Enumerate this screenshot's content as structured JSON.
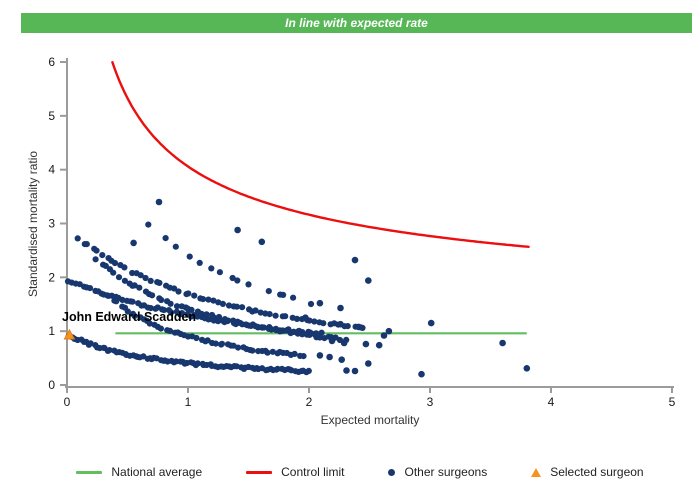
{
  "banner": {
    "text": "In line with expected rate",
    "bg": "#57B757",
    "text_color": "#FFFFFF"
  },
  "colors": {
    "navy_points": "#17376E",
    "control_limit_red": "#EC0F0F",
    "national_average_green": "#62BE5E",
    "selected_orange": "#F6921E",
    "selected_orange_edge": "#E07C10",
    "axis_gray": "#9B9B9B",
    "tick_label": "#1A1A1A",
    "axis_title": "#333333"
  },
  "chart_data": {
    "type": "scatter",
    "title": "In line with expected rate",
    "xlabel": "Expected mortality",
    "ylabel": "Standardised mortality ratio",
    "xlim": [
      0,
      5
    ],
    "ylim": [
      0,
      6
    ],
    "xticks": [
      0,
      1,
      2,
      3,
      4,
      5
    ],
    "yticks": [
      0,
      1,
      2,
      3,
      4,
      5,
      6
    ],
    "grid": false,
    "legend_position": "bottom",
    "national_average": {
      "y": 0.96,
      "x_start": 0.4,
      "x_end": 3.8
    },
    "control_limit": {
      "formula": "y = 1 + 3.06/sqrt(x)",
      "k": 3.06,
      "offset": 1,
      "x_start": 0.375,
      "x_end": 3.83
    },
    "selected_surgeon": {
      "label": "John Edward Scadden",
      "x": 0.02,
      "y": 0.93
    },
    "other_surgeons": {
      "note": "dense hyperbolic bands of surgeons, y = k/(x+c) over x0..x1 with n points each",
      "bands": [
        {
          "k": 0.705,
          "c": 0.74,
          "x0": 0.02,
          "x1": 2.0,
          "n": 88
        },
        {
          "k": 3.9,
          "c": 2.0,
          "x0": 0.02,
          "x1": 2.1,
          "n": 72
        },
        {
          "k": 1.3,
          "c": 0.44,
          "x0": 0.35,
          "x1": 1.95,
          "n": 52
        },
        {
          "k": 2.7,
          "c": 0.91,
          "x0": 0.25,
          "x1": 2.3,
          "n": 58
        },
        {
          "k": 4.05,
          "c": 1.39,
          "x0": 0.09,
          "x1": 2.45,
          "n": 60
        },
        {
          "k": 4.16,
          "c": 0.72,
          "x0": 0.7,
          "x1": 2.0,
          "n": 15
        }
      ],
      "points": [
        [
          0.76,
          3.4
        ],
        [
          1.41,
          2.88
        ],
        [
          1.61,
          2.66
        ],
        [
          0.55,
          2.64
        ],
        [
          2.38,
          2.32
        ],
        [
          2.49,
          1.94
        ],
        [
          1.97,
          1.25
        ],
        [
          2.09,
          1.52
        ],
        [
          2.26,
          1.43
        ],
        [
          2.26,
          1.13
        ],
        [
          2.41,
          1.08
        ],
        [
          2.66,
          1.0
        ],
        [
          3.01,
          1.15
        ],
        [
          2.05,
          0.94
        ],
        [
          2.19,
          0.82
        ],
        [
          2.29,
          0.78
        ],
        [
          2.47,
          0.76
        ],
        [
          2.58,
          0.74
        ],
        [
          2.62,
          0.92
        ],
        [
          2.09,
          0.55
        ],
        [
          2.17,
          0.52
        ],
        [
          2.27,
          0.47
        ],
        [
          2.49,
          0.4
        ],
        [
          2.31,
          0.27
        ],
        [
          2.38,
          0.26
        ],
        [
          2.93,
          0.2
        ],
        [
          3.6,
          0.78
        ],
        [
          3.8,
          0.31
        ]
      ]
    },
    "legend": [
      {
        "label": "National average",
        "type": "line",
        "color": "#62BE5E"
      },
      {
        "label": "Control limit",
        "type": "line",
        "color": "#EC0F0F"
      },
      {
        "label": "Other surgeons",
        "type": "dot",
        "color": "#17376E"
      },
      {
        "label": "Selected surgeon",
        "type": "triangle",
        "color": "#F6921E"
      }
    ]
  }
}
